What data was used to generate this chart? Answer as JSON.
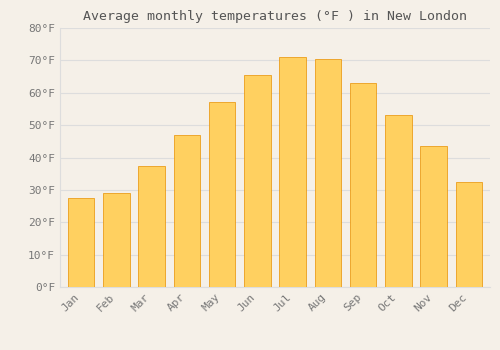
{
  "title": "Average monthly temperatures (°F ) in New London",
  "months": [
    "Jan",
    "Feb",
    "Mar",
    "Apr",
    "May",
    "Jun",
    "Jul",
    "Aug",
    "Sep",
    "Oct",
    "Nov",
    "Dec"
  ],
  "values": [
    27.5,
    29.0,
    37.5,
    47.0,
    57.0,
    65.5,
    71.0,
    70.5,
    63.0,
    53.0,
    43.5,
    32.5
  ],
  "bar_color_top": "#FFA500",
  "bar_color_bottom": "#FFD060",
  "bar_edge_color": "#E89000",
  "background_color": "#F5F0E8",
  "grid_color": "#DDDDDD",
  "text_color": "#777777",
  "title_color": "#555555",
  "ylim": [
    0,
    80
  ],
  "yticks": [
    0,
    10,
    20,
    30,
    40,
    50,
    60,
    70,
    80
  ],
  "title_fontsize": 9.5,
  "tick_fontsize": 8,
  "font_family": "monospace"
}
